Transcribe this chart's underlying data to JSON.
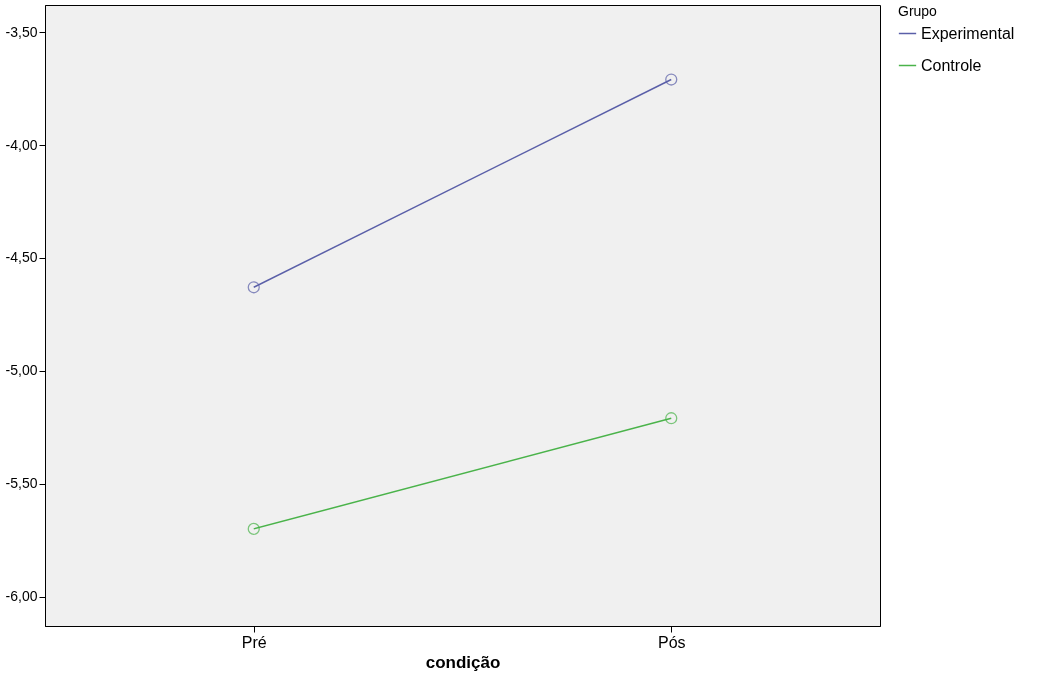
{
  "chart_data": {
    "type": "line",
    "xlabel": "condição",
    "legend_title": "Grupo",
    "categories": [
      "Pré",
      "Pós"
    ],
    "series": [
      {
        "name": "Experimental",
        "color": "#5a5fa8",
        "values": [
          -4.63,
          -3.71
        ]
      },
      {
        "name": "Controle",
        "color": "#4ab34a",
        "values": [
          -5.7,
          -5.21
        ]
      }
    ],
    "ylim": [
      -6.13,
      -3.38
    ],
    "yticks": [
      {
        "value": -6.0,
        "label": "-6,00"
      },
      {
        "value": -5.5,
        "label": "-5,50"
      },
      {
        "value": -5.0,
        "label": "-5,00"
      },
      {
        "value": -4.5,
        "label": "-4,50"
      },
      {
        "value": -4.0,
        "label": "-4,00"
      },
      {
        "value": -3.5,
        "label": "-3,50"
      }
    ],
    "marker": "circle",
    "line_style": "solid",
    "grid": false,
    "legend": "top right"
  }
}
